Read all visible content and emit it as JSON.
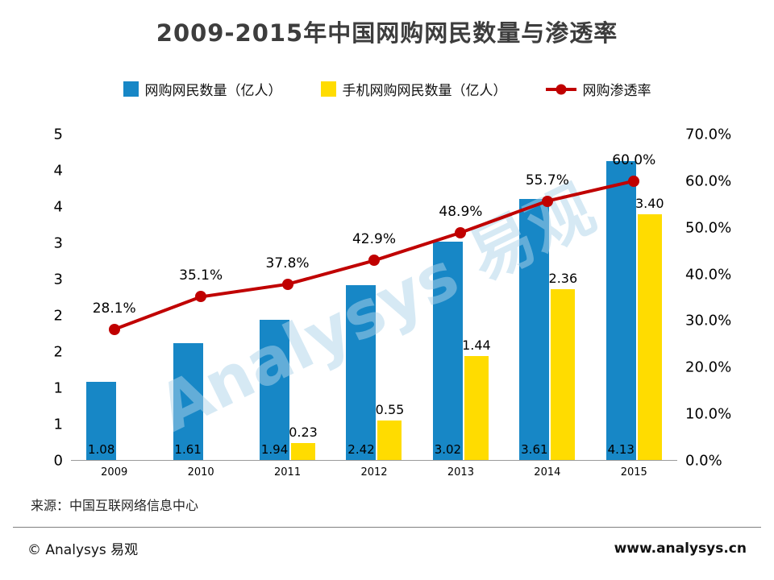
{
  "title": "2009-2015年中国网购网民数量与渗透率",
  "legend": [
    {
      "label": "网购网民数量（亿人）",
      "color": "#1787c6",
      "type": "bar"
    },
    {
      "label": "手机网购网民数量（亿人）",
      "color": "#ffdc00",
      "type": "bar"
    },
    {
      "label": "网购渗透率",
      "color": "#c00000",
      "type": "line"
    }
  ],
  "chart_data": {
    "type": "bar+line",
    "categories": [
      "2009",
      "2010",
      "2011",
      "2012",
      "2013",
      "2014",
      "2015"
    ],
    "series": [
      {
        "name": "网购网民数量（亿人）",
        "type": "bar",
        "color": "#1787c6",
        "values": [
          1.08,
          1.61,
          1.94,
          2.42,
          3.02,
          3.61,
          4.13
        ]
      },
      {
        "name": "手机网购网民数量（亿人）",
        "type": "bar",
        "color": "#ffdc00",
        "values": [
          null,
          null,
          0.23,
          0.55,
          1.44,
          2.36,
          3.4
        ]
      },
      {
        "name": "网购渗透率",
        "type": "line",
        "color": "#c00000",
        "values_percent": [
          28.1,
          35.1,
          37.8,
          42.9,
          48.9,
          55.7,
          60.0
        ]
      }
    ],
    "line_labels": [
      "28.1%",
      "35.1%",
      "37.8%",
      "42.9%",
      "48.9%",
      "55.7%",
      "60.0%"
    ],
    "left_axis": {
      "max": 4.5,
      "labels_top_to_bottom": [
        "5",
        "4",
        "4",
        "3",
        "3",
        "2",
        "2",
        "1",
        "1",
        "0"
      ]
    },
    "right_axis": {
      "max": 70,
      "labels_top_to_bottom": [
        "70.0%",
        "60.0%",
        "50.0%",
        "40.0%",
        "30.0%",
        "20.0%",
        "10.0%",
        "0.0%"
      ]
    },
    "grid": "off",
    "legend_position": "top"
  },
  "watermark": "Analysys 易观",
  "source": "来源：中国互联网络信息中心",
  "footer": {
    "left": "© Analysys 易观",
    "right": "www.analysys.cn"
  }
}
